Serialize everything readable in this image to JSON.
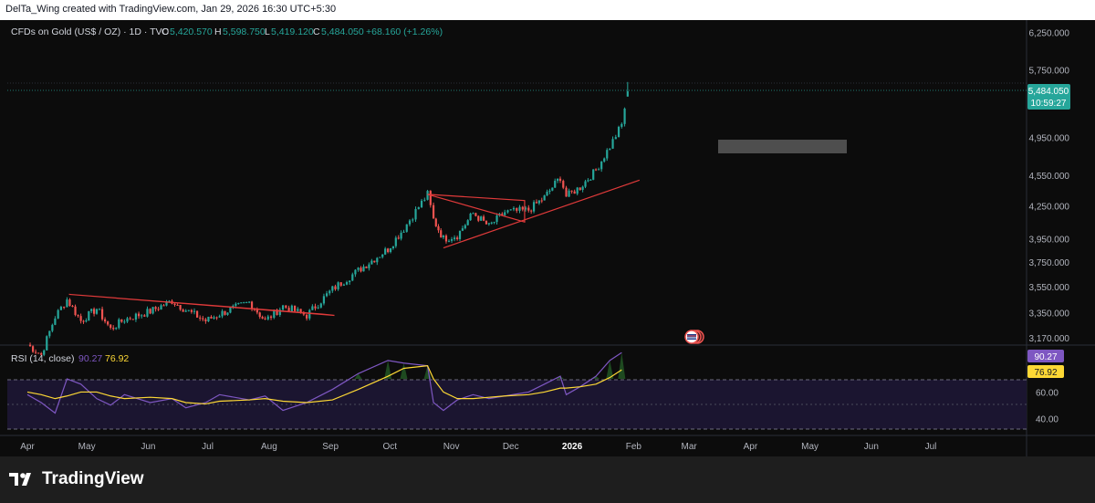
{
  "header": {
    "credit": "DelTa_Wing created with TradingView.com, Jan 29, 2026 16:30 UTC+5:30"
  },
  "legend": {
    "symbol": "CFDs on Gold (US$ / OZ) · 1D · TVC",
    "open_label": "O",
    "open": "5,420.570",
    "high_label": "H",
    "high": "5,598.750",
    "low_label": "L",
    "low": "5,419.120",
    "close_label": "C",
    "close": "5,484.050",
    "change": "+68.160 (+1.26%)"
  },
  "price_tag": {
    "price": "5,484.050",
    "countdown": "10:59:27"
  },
  "rsi_legend": {
    "label": "RSI (14, close)",
    "rsi": "90.27",
    "ma": "76.92"
  },
  "rsi_tags": {
    "rsi": "90.27",
    "ma": "76.92"
  },
  "brand": {
    "name": "TradingView"
  },
  "colors": {
    "up": "#26a69a",
    "down": "#ef5350",
    "rsi": "#7e57c2",
    "rsi_ma": "#fdd835",
    "trendline": "#e03a3a"
  },
  "chart_data": [
    {
      "type": "candlestick",
      "title": "CFDs on Gold (US$ / OZ) · 1D · TVC",
      "x_ticks": [
        "Apr",
        "May",
        "Jun",
        "Jul",
        "Aug",
        "Sep",
        "Oct",
        "Nov",
        "Dec",
        "2026",
        "Feb",
        "Mar",
        "Apr",
        "May",
        "Jun",
        "Jul"
      ],
      "y_ticks": [
        "6,250.000",
        "5,750.000",
        "4,950.000",
        "4,550.000",
        "4,250.000",
        "3,950.000",
        "3,750.000",
        "3,550.000",
        "3,350.000",
        "3,170.000"
      ],
      "y_scale": "log",
      "ylim": [
        3130,
        6400
      ],
      "grid": false,
      "last": {
        "open": 5420.57,
        "high": 5598.75,
        "low": 5419.12,
        "close": 5484.05
      },
      "close_path": [
        [
          "2025-04-01",
          3120
        ],
        [
          "2025-04-08",
          3050
        ],
        [
          "2025-04-15",
          3320
        ],
        [
          "2025-04-21",
          3450
        ],
        [
          "2025-04-28",
          3290
        ],
        [
          "2025-05-06",
          3380
        ],
        [
          "2025-05-13",
          3230
        ],
        [
          "2025-05-20",
          3300
        ],
        [
          "2025-06-02",
          3360
        ],
        [
          "2025-06-13",
          3440
        ],
        [
          "2025-06-20",
          3370
        ],
        [
          "2025-06-30",
          3290
        ],
        [
          "2025-07-07",
          3340
        ],
        [
          "2025-07-22",
          3430
        ],
        [
          "2025-07-30",
          3290
        ],
        [
          "2025-08-08",
          3400
        ],
        [
          "2025-08-20",
          3330
        ],
        [
          "2025-09-02",
          3530
        ],
        [
          "2025-09-15",
          3680
        ],
        [
          "2025-09-30",
          3860
        ],
        [
          "2025-10-08",
          4040
        ],
        [
          "2025-10-20",
          4360
        ],
        [
          "2025-10-23",
          4120
        ],
        [
          "2025-10-28",
          3950
        ],
        [
          "2025-11-04",
          3980
        ],
        [
          "2025-11-12",
          4180
        ],
        [
          "2025-11-20",
          4060
        ],
        [
          "2025-11-28",
          4190
        ],
        [
          "2025-12-10",
          4210
        ],
        [
          "2025-12-18",
          4330
        ],
        [
          "2025-12-26",
          4530
        ],
        [
          "2025-12-29",
          4340
        ],
        [
          "2026-01-05",
          4430
        ],
        [
          "2026-01-13",
          4600
        ],
        [
          "2026-01-20",
          4850
        ],
        [
          "2026-01-26",
          5090
        ],
        [
          "2026-01-29",
          5484
        ]
      ],
      "annotations": [
        {
          "kind": "triangle",
          "points": [
            [
              "2025-04-22",
              3490
            ],
            [
              "2025-08-28",
              3340
            ],
            [
              "2025-09-03",
              3330
            ]
          ]
        },
        {
          "kind": "triangle",
          "points": [
            [
              "2025-10-20",
              4360
            ],
            [
              "2025-12-08",
              4100
            ],
            [
              "2025-12-08",
              4300
            ]
          ]
        },
        {
          "kind": "trendline",
          "from": [
            "2025-10-28",
            3870
          ],
          "to": [
            "2026-02-04",
            4500
          ]
        }
      ]
    },
    {
      "type": "line",
      "title": "RSI (14, close)",
      "series": [
        {
          "name": "RSI",
          "values": [
            58,
            52,
            44,
            70,
            66,
            55,
            50,
            58,
            52,
            55,
            48,
            52,
            58,
            54,
            57,
            46,
            52,
            62,
            74,
            84,
            82,
            80,
            52,
            46,
            54,
            58,
            55,
            57,
            60,
            66,
            72,
            58,
            64,
            72,
            84,
            90
          ]
        },
        {
          "name": "RSI-based MA",
          "values": [
            60,
            58,
            55,
            57,
            60,
            60,
            57,
            55,
            56,
            55,
            52,
            51,
            53,
            54,
            55,
            53,
            52,
            54,
            62,
            72,
            78,
            80,
            70,
            60,
            55,
            55,
            56,
            57,
            58,
            60,
            63,
            63,
            64,
            66,
            71,
            76.9
          ]
        }
      ],
      "y_ticks": [
        "60.00",
        "40.00"
      ],
      "levels": [
        70,
        50,
        30
      ],
      "ylim": [
        27,
        95
      ]
    }
  ]
}
